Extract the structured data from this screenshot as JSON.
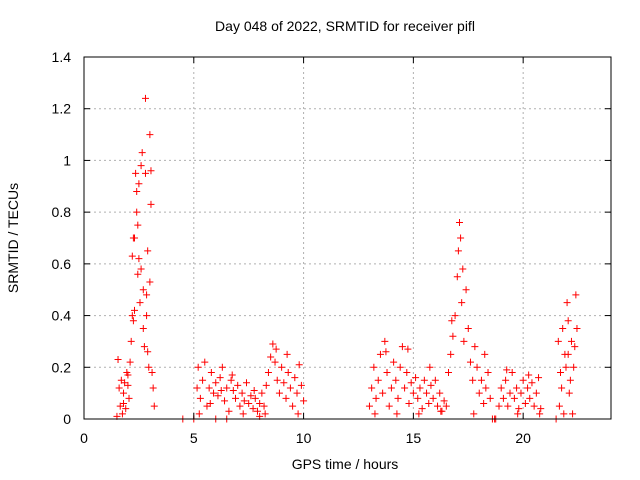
{
  "chart_data": {
    "type": "scatter",
    "title": "Day 048 of 2022, SRMTID for receiver pifl",
    "xlabel": "GPS time / hours",
    "ylabel": "SRMTID / TECUs",
    "xlim": [
      0,
      24
    ],
    "ylim": [
      0,
      1.4
    ],
    "x_ticks": [
      0,
      5,
      10,
      15,
      20
    ],
    "y_ticks": [
      0,
      0.2,
      0.4,
      0.6,
      0.8,
      1,
      1.2,
      1.4
    ],
    "x_tick_labels": [
      "0",
      "5",
      "10",
      "15",
      "20"
    ],
    "y_tick_labels": [
      "0",
      "0.2",
      "0.4",
      "0.6",
      "0.8",
      "1",
      "1.2",
      "1.4"
    ],
    "grid": true,
    "marker": "+",
    "series": [
      {
        "name": "SRMTID",
        "color": "#ff0000",
        "points": [
          [
            1.5,
            0.01
          ],
          [
            1.55,
            0.23
          ],
          [
            1.6,
            0.12
          ],
          [
            1.65,
            0.05
          ],
          [
            1.7,
            0.15
          ],
          [
            1.75,
            0.02
          ],
          [
            1.8,
            0.1
          ],
          [
            1.85,
            0.14
          ],
          [
            1.9,
            0.04
          ],
          [
            1.95,
            0.18
          ],
          [
            2.0,
            0.13
          ],
          [
            2.05,
            0.08
          ],
          [
            2.1,
            0.22
          ],
          [
            2.15,
            0.3
          ],
          [
            2.2,
            0.4
          ],
          [
            2.25,
            0.38
          ],
          [
            2.3,
            0.7
          ],
          [
            2.35,
            0.95
          ],
          [
            2.4,
            0.88
          ],
          [
            2.45,
            0.75
          ],
          [
            2.5,
            0.62
          ],
          [
            2.55,
            0.45
          ],
          [
            2.6,
            0.98
          ],
          [
            2.65,
            1.03
          ],
          [
            2.7,
            0.5
          ],
          [
            2.75,
            0.28
          ],
          [
            2.8,
            1.24
          ],
          [
            2.85,
            0.4
          ],
          [
            2.9,
            0.65
          ],
          [
            2.95,
            0.2
          ],
          [
            3.0,
            1.1
          ],
          [
            3.05,
            0.83
          ],
          [
            3.1,
            0.18
          ],
          [
            3.15,
            0.12
          ],
          [
            3.2,
            0.05
          ],
          [
            2.2,
            0.63
          ],
          [
            2.4,
            0.8
          ],
          [
            2.6,
            0.58
          ],
          [
            2.8,
            0.95
          ],
          [
            3.0,
            0.53
          ],
          [
            1.8,
            0.06
          ],
          [
            2.0,
            0.17
          ],
          [
            2.3,
            0.42
          ],
          [
            2.5,
            0.91
          ],
          [
            2.7,
            0.35
          ],
          [
            2.9,
            0.26
          ],
          [
            3.05,
            0.96
          ],
          [
            2.25,
            0.7
          ],
          [
            2.45,
            0.56
          ],
          [
            2.85,
            0.48
          ],
          [
            4.5,
            0.0
          ],
          [
            5.0,
            0.0
          ],
          [
            5.15,
            0.12
          ],
          [
            5.2,
            0.2
          ],
          [
            5.3,
            0.08
          ],
          [
            5.4,
            0.15
          ],
          [
            5.5,
            0.22
          ],
          [
            5.6,
            0.05
          ],
          [
            5.7,
            0.12
          ],
          [
            5.8,
            0.18
          ],
          [
            5.9,
            0.1
          ],
          [
            6.0,
            0.14
          ],
          [
            6.1,
            0.09
          ],
          [
            6.2,
            0.16
          ],
          [
            6.3,
            0.2
          ],
          [
            6.4,
            0.07
          ],
          [
            6.5,
            0.12
          ],
          [
            6.6,
            0.03
          ],
          [
            6.7,
            0.15
          ],
          [
            6.8,
            0.11
          ],
          [
            6.9,
            0.08
          ],
          [
            7.0,
            0.13
          ],
          [
            7.1,
            0.05
          ],
          [
            7.2,
            0.1
          ],
          [
            7.3,
            0.07
          ],
          [
            7.4,
            0.14
          ],
          [
            7.5,
            0.06
          ],
          [
            7.6,
            0.09
          ],
          [
            7.7,
            0.04
          ],
          [
            7.8,
            0.08
          ],
          [
            7.9,
            0.03
          ],
          [
            8.0,
            0.06
          ],
          [
            8.1,
            0.1
          ],
          [
            8.2,
            0.05
          ],
          [
            8.3,
            0.13
          ],
          [
            8.4,
            0.18
          ],
          [
            8.5,
            0.24
          ],
          [
            8.6,
            0.29
          ],
          [
            8.7,
            0.22
          ],
          [
            8.8,
            0.15
          ],
          [
            8.9,
            0.1
          ],
          [
            9.0,
            0.2
          ],
          [
            9.1,
            0.14
          ],
          [
            9.2,
            0.08
          ],
          [
            9.3,
            0.18
          ],
          [
            9.4,
            0.12
          ],
          [
            9.5,
            0.05
          ],
          [
            9.6,
            0.16
          ],
          [
            9.7,
            0.1
          ],
          [
            9.8,
            0.21
          ],
          [
            9.9,
            0.13
          ],
          [
            10.0,
            0.07
          ],
          [
            5.25,
            0.02
          ],
          [
            5.75,
            0.06
          ],
          [
            6.25,
            0.11
          ],
          [
            6.75,
            0.17
          ],
          [
            7.25,
            0.02
          ],
          [
            7.75,
            0.11
          ],
          [
            8.25,
            0.02
          ],
          [
            8.75,
            0.27
          ],
          [
            9.25,
            0.25
          ],
          [
            9.75,
            0.02
          ],
          [
            6.0,
            0.0
          ],
          [
            6.5,
            0.0
          ],
          [
            8.0,
            0.01
          ],
          [
            13.0,
            0.05
          ],
          [
            13.1,
            0.12
          ],
          [
            13.2,
            0.2
          ],
          [
            13.3,
            0.08
          ],
          [
            13.4,
            0.15
          ],
          [
            13.5,
            0.25
          ],
          [
            13.6,
            0.1
          ],
          [
            13.7,
            0.3
          ],
          [
            13.8,
            0.18
          ],
          [
            13.9,
            0.05
          ],
          [
            14.0,
            0.12
          ],
          [
            14.1,
            0.22
          ],
          [
            14.2,
            0.15
          ],
          [
            14.3,
            0.08
          ],
          [
            14.4,
            0.2
          ],
          [
            14.5,
            0.28
          ],
          [
            14.6,
            0.12
          ],
          [
            14.7,
            0.18
          ],
          [
            14.8,
            0.06
          ],
          [
            14.9,
            0.14
          ],
          [
            15.0,
            0.1
          ],
          [
            15.1,
            0.16
          ],
          [
            15.2,
            0.08
          ],
          [
            15.3,
            0.12
          ],
          [
            15.4,
            0.04
          ],
          [
            15.5,
            0.15
          ],
          [
            15.6,
            0.1
          ],
          [
            15.7,
            0.06
          ],
          [
            15.8,
            0.13
          ],
          [
            15.9,
            0.08
          ],
          [
            16.0,
            0.15
          ],
          [
            16.1,
            0.05
          ],
          [
            16.2,
            0.1
          ],
          [
            16.3,
            0.03
          ],
          [
            16.4,
            0.07
          ],
          [
            16.5,
            0.05
          ],
          [
            16.6,
            0.18
          ],
          [
            16.7,
            0.25
          ],
          [
            16.8,
            0.32
          ],
          [
            16.9,
            0.4
          ],
          [
            17.0,
            0.55
          ],
          [
            17.05,
            0.65
          ],
          [
            17.1,
            0.76
          ],
          [
            17.15,
            0.7
          ],
          [
            17.2,
            0.45
          ],
          [
            17.3,
            0.3
          ],
          [
            17.4,
            0.5
          ],
          [
            17.5,
            0.35
          ],
          [
            17.6,
            0.22
          ],
          [
            17.7,
            0.15
          ],
          [
            17.8,
            0.28
          ],
          [
            17.9,
            0.2
          ],
          [
            18.0,
            0.1
          ],
          [
            18.1,
            0.15
          ],
          [
            18.2,
            0.06
          ],
          [
            18.3,
            0.12
          ],
          [
            18.4,
            0.18
          ],
          [
            18.5,
            0.08
          ],
          [
            18.6,
            0.0
          ],
          [
            18.7,
            0.0
          ],
          [
            18.9,
            0.05
          ],
          [
            19.0,
            0.12
          ],
          [
            19.1,
            0.08
          ],
          [
            19.2,
            0.15
          ],
          [
            19.3,
            0.05
          ],
          [
            19.4,
            0.1
          ],
          [
            19.5,
            0.18
          ],
          [
            19.6,
            0.08
          ],
          [
            19.7,
            0.12
          ],
          [
            19.8,
            0.04
          ],
          [
            19.9,
            0.1
          ],
          [
            20.0,
            0.15
          ],
          [
            20.1,
            0.06
          ],
          [
            20.2,
            0.12
          ],
          [
            20.3,
            0.08
          ],
          [
            20.4,
            0.14
          ],
          [
            20.5,
            0.05
          ],
          [
            20.6,
            0.1
          ],
          [
            20.7,
            0.16
          ],
          [
            20.8,
            0.04
          ],
          [
            13.25,
            0.02
          ],
          [
            13.75,
            0.26
          ],
          [
            14.25,
            0.02
          ],
          [
            14.75,
            0.27
          ],
          [
            15.25,
            0.02
          ],
          [
            15.75,
            0.2
          ],
          [
            16.25,
            0.03
          ],
          [
            16.75,
            0.38
          ],
          [
            17.25,
            0.58
          ],
          [
            17.75,
            0.02
          ],
          [
            18.25,
            0.25
          ],
          [
            18.75,
            0.0
          ],
          [
            19.25,
            0.19
          ],
          [
            19.75,
            0.02
          ],
          [
            20.25,
            0.17
          ],
          [
            20.75,
            0.02
          ],
          [
            21.5,
            0.0
          ],
          [
            21.6,
            0.3
          ],
          [
            21.7,
            0.18
          ],
          [
            21.8,
            0.35
          ],
          [
            21.9,
            0.25
          ],
          [
            22.0,
            0.45
          ],
          [
            22.1,
            0.1
          ],
          [
            22.2,
            0.3
          ],
          [
            22.3,
            0.2
          ],
          [
            22.4,
            0.48
          ],
          [
            21.65,
            0.05
          ],
          [
            21.75,
            0.12
          ],
          [
            21.85,
            0.02
          ],
          [
            21.95,
            0.2
          ],
          [
            22.05,
            0.38
          ],
          [
            22.15,
            0.15
          ],
          [
            22.25,
            0.02
          ],
          [
            22.35,
            0.28
          ],
          [
            22.45,
            0.35
          ],
          [
            22.05,
            0.25
          ]
        ]
      }
    ]
  }
}
